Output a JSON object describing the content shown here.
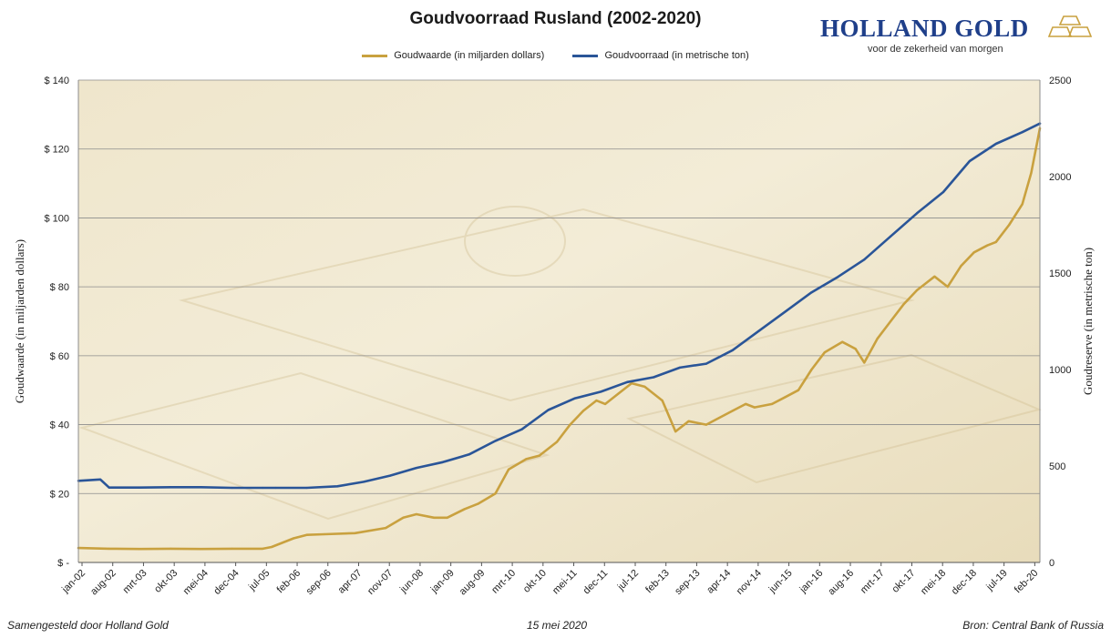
{
  "header": {
    "brand": "HOLLAND GOLD",
    "tagline": "voor de zekerheid van morgen"
  },
  "footer": {
    "left": "Samengesteld door Holland Gold",
    "center": "15 mei 2020",
    "right": "Bron: Central Bank of Russia"
  },
  "colors": {
    "value_series": "#c9a13f",
    "reserve_series": "#2a5598",
    "background_tint": "#ece0c0"
  },
  "chart_data": {
    "type": "line",
    "title": "Goudvoorraad Rusland (2002-2020)",
    "grid": "horizontal",
    "legend_position": "top",
    "x_tick_labels": [
      "jan-02",
      "aug-02",
      "mrt-03",
      "okt-03",
      "mei-04",
      "dec-04",
      "jul-05",
      "feb-06",
      "sep-06",
      "apr-07",
      "nov-07",
      "jun-08",
      "jan-09",
      "aug-09",
      "mrt-10",
      "okt-10",
      "mei-11",
      "dec-11",
      "jul-12",
      "feb-13",
      "sep-13",
      "apr-14",
      "nov-14",
      "jun-15",
      "jan-16",
      "aug-16",
      "mrt-17",
      "okt-17",
      "mei-18",
      "dec-18",
      "jul-19",
      "feb-20"
    ],
    "y_left": {
      "label": "Goudwaarde (in miljarden dollars)",
      "range": [
        0,
        140
      ],
      "tick_labels": [
        "$ -",
        "$ 20",
        "$ 40",
        "$ 60",
        "$ 80",
        "$ 100",
        "$ 120",
        "$ 140"
      ]
    },
    "y_right": {
      "label": "Goudreserve (in metrische ton)",
      "range": [
        0,
        2500
      ],
      "tick_labels": [
        "0",
        "500",
        "1000",
        "1500",
        "2000",
        "2500"
      ]
    },
    "series": [
      {
        "name": "Goudwaarde (in miljarden dollars)",
        "axis": "left",
        "color": "#c9a13f",
        "x": [
          "2002-01",
          "2002-08",
          "2003-03",
          "2003-10",
          "2004-05",
          "2004-12",
          "2005-07",
          "2005-09",
          "2006-02",
          "2006-05",
          "2006-09",
          "2007-04",
          "2007-11",
          "2008-03",
          "2008-06",
          "2008-10",
          "2009-01",
          "2009-05",
          "2009-08",
          "2009-12",
          "2010-03",
          "2010-07",
          "2010-10",
          "2011-02",
          "2011-05",
          "2011-08",
          "2011-11",
          "2012-01",
          "2012-04",
          "2012-07",
          "2012-10",
          "2013-02",
          "2013-05",
          "2013-08",
          "2013-12",
          "2014-03",
          "2014-06",
          "2014-09",
          "2014-11",
          "2015-03",
          "2015-06",
          "2015-09",
          "2015-12",
          "2016-03",
          "2016-07",
          "2016-10",
          "2016-12",
          "2017-03",
          "2017-06",
          "2017-09",
          "2017-12",
          "2018-04",
          "2018-07",
          "2018-10",
          "2019-01",
          "2019-04",
          "2019-06",
          "2019-09",
          "2019-12",
          "2020-02",
          "2020-04"
        ],
        "values": [
          4.2,
          4.0,
          3.9,
          4.0,
          3.9,
          4.0,
          4.0,
          4.5,
          7,
          8,
          8.2,
          8.5,
          10,
          13,
          14,
          13,
          13,
          15.5,
          17,
          20,
          27,
          30,
          31,
          35,
          40,
          44,
          47,
          46,
          49,
          52,
          51,
          47,
          38,
          41,
          40,
          42,
          44,
          46,
          45,
          46,
          48,
          50,
          56,
          61,
          64,
          62,
          58,
          65,
          70,
          75,
          79,
          83,
          80,
          86,
          90,
          92,
          93,
          98,
          104,
          113,
          126
        ]
      },
      {
        "name": "Goudvoorraad (in metrische ton)",
        "axis": "right",
        "color": "#2a5598",
        "x": [
          "2002-01",
          "2002-06",
          "2002-08",
          "2003-03",
          "2003-10",
          "2004-05",
          "2004-12",
          "2005-07",
          "2005-10",
          "2006-05",
          "2006-12",
          "2007-06",
          "2007-12",
          "2008-06",
          "2008-12",
          "2009-06",
          "2009-12",
          "2010-06",
          "2010-12",
          "2011-06",
          "2011-12",
          "2012-06",
          "2012-12",
          "2013-06",
          "2013-12",
          "2014-06",
          "2014-12",
          "2015-06",
          "2015-12",
          "2016-06",
          "2016-12",
          "2017-06",
          "2017-12",
          "2018-06",
          "2018-12",
          "2019-06",
          "2019-12",
          "2020-04"
        ],
        "values": [
          423,
          430,
          388,
          388,
          390,
          390,
          387,
          387,
          387,
          387,
          395,
          418,
          450,
          490,
          520,
          560,
          630,
          690,
          790,
          850,
          885,
          935,
          960,
          1010,
          1030,
          1100,
          1200,
          1300,
          1400,
          1480,
          1570,
          1690,
          1810,
          1920,
          2080,
          2170,
          2230,
          2275
        ]
      }
    ]
  }
}
